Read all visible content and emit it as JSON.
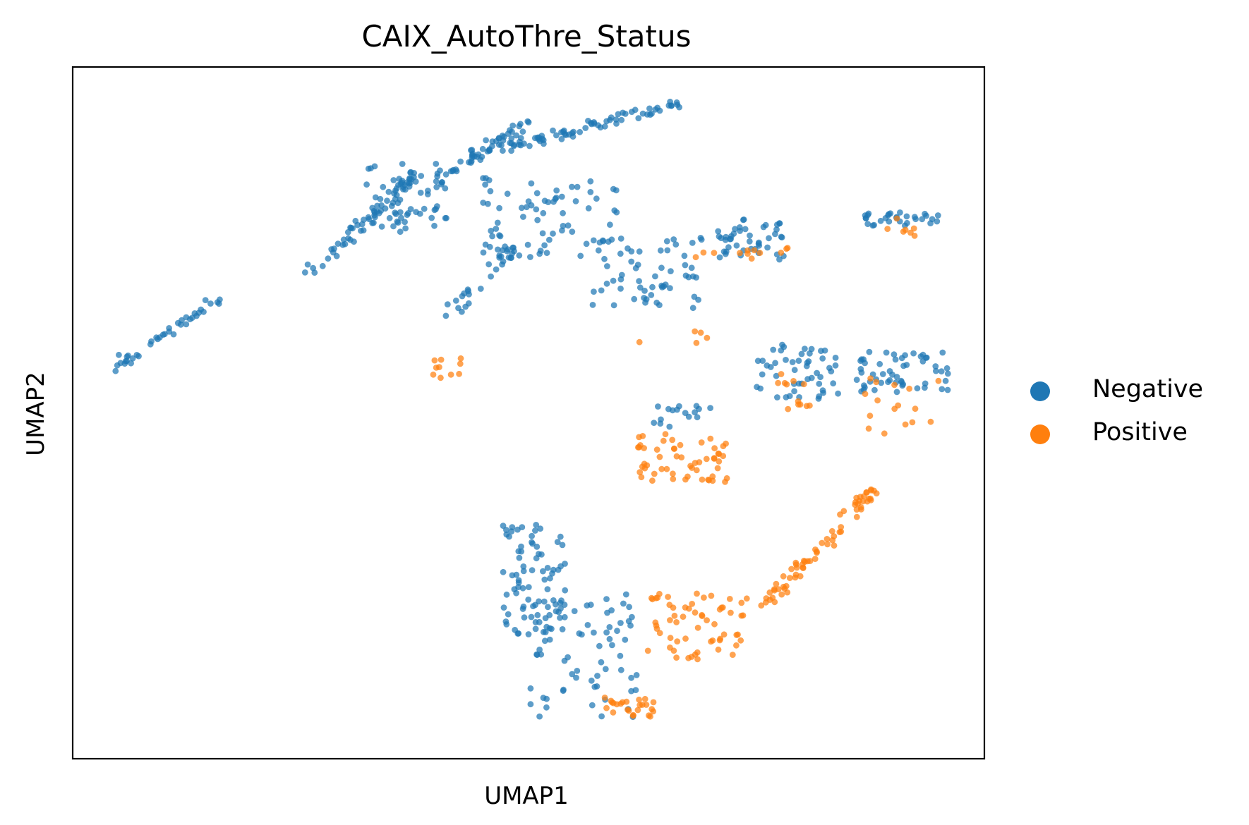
{
  "chart_data": {
    "type": "scatter",
    "title": "CAIX_AutoThre_Status",
    "xlabel": "UMAP1",
    "ylabel": "UMAP2",
    "xlim": [
      0,
      100
    ],
    "ylim": [
      0,
      100
    ],
    "ticks_visible": false,
    "grid": false,
    "legend_position": "right",
    "series": [
      {
        "name": "Negative",
        "color": "#1f77b4",
        "clusters": [
          {
            "x": [
              4.2,
              15.6
            ],
            "y": [
              56.2,
              66.4
            ],
            "n": 40,
            "shape": "line"
          },
          {
            "x": [
              25.8,
              38.0
            ],
            "y": [
              70.0,
              85.2
            ],
            "n": 60,
            "shape": "line"
          },
          {
            "x": [
              32.0,
              42.0
            ],
            "y": [
              76.0,
              86.0
            ],
            "n": 60,
            "shape": "blob"
          },
          {
            "x": [
              40.0,
              50.0
            ],
            "y": [
              84.0,
              92.0
            ],
            "n": 50,
            "shape": "line"
          },
          {
            "x": [
              46.0,
              66.0
            ],
            "y": [
              88.0,
              94.5
            ],
            "n": 70,
            "shape": "line"
          },
          {
            "x": [
              41.0,
              49.0
            ],
            "y": [
              64.0,
              74.0
            ],
            "n": 30,
            "shape": "line"
          },
          {
            "x": [
              45.0,
              60.0
            ],
            "y": [
              72.0,
              84.0
            ],
            "n": 70,
            "shape": "blob"
          },
          {
            "x": [
              57.0,
              69.0
            ],
            "y": [
              65.0,
              76.0
            ],
            "n": 60,
            "shape": "blob"
          },
          {
            "x": [
              70.0,
              78.0
            ],
            "y": [
              72.0,
              78.0
            ],
            "n": 45,
            "shape": "blob"
          },
          {
            "x": [
              86.0,
              95.0
            ],
            "y": [
              77.0,
              79.0
            ],
            "n": 30,
            "shape": "blob"
          },
          {
            "x": [
              75.0,
              84.0
            ],
            "y": [
              52.0,
              60.0
            ],
            "n": 50,
            "shape": "blob"
          },
          {
            "x": [
              86.0,
              96.0
            ],
            "y": [
              53.0,
              59.0
            ],
            "n": 55,
            "shape": "blob"
          },
          {
            "x": [
              62.0,
              70.0
            ],
            "y": [
              48.0,
              51.0
            ],
            "n": 16,
            "shape": "blob"
          },
          {
            "x": [
              47.0,
              54.0
            ],
            "y": [
              18.0,
              34.0
            ],
            "n": 80,
            "shape": "blob"
          },
          {
            "x": [
              50.0,
              62.0
            ],
            "y": [
              6.0,
              24.0
            ],
            "n": 70,
            "shape": "blob"
          }
        ]
      },
      {
        "name": "Positive",
        "color": "#ff7f0e",
        "clusters": [
          {
            "x": [
              62.0,
              72.0
            ],
            "y": [
              40.0,
              47.0
            ],
            "n": 55,
            "shape": "blob"
          },
          {
            "x": [
              76.0,
              88.0
            ],
            "y": [
              22.0,
              39.0
            ],
            "n": 70,
            "shape": "line"
          },
          {
            "x": [
              62.0,
              74.0
            ],
            "y": [
              14.0,
              24.0
            ],
            "n": 60,
            "shape": "blob"
          },
          {
            "x": [
              58.0,
              65.0
            ],
            "y": [
              6.0,
              9.0
            ],
            "n": 25,
            "shape": "blob"
          },
          {
            "x": [
              38.0,
              43.0
            ],
            "y": [
              55.0,
              58.0
            ],
            "n": 10,
            "shape": "blob"
          },
          {
            "x": [
              77.0,
              82.0
            ],
            "y": [
              50.0,
              56.0
            ],
            "n": 12,
            "shape": "blob"
          },
          {
            "x": [
              86.0,
              95.0
            ],
            "y": [
              47.0,
              55.0
            ],
            "n": 16,
            "shape": "blob"
          },
          {
            "x": [
              68.0,
              80.0
            ],
            "y": [
              72.0,
              75.0
            ],
            "n": 12,
            "shape": "blob"
          },
          {
            "x": [
              89.0,
              95.0
            ],
            "y": [
              75.5,
              78.5
            ],
            "n": 7,
            "shape": "blob"
          },
          {
            "x": [
              62.0,
              71.0
            ],
            "y": [
              60.0,
              62.0
            ],
            "n": 5,
            "shape": "blob"
          }
        ]
      }
    ]
  },
  "legend": {
    "items": [
      {
        "label": "Negative",
        "color": "#1f77b4"
      },
      {
        "label": "Positive",
        "color": "#ff7f0e"
      }
    ]
  }
}
